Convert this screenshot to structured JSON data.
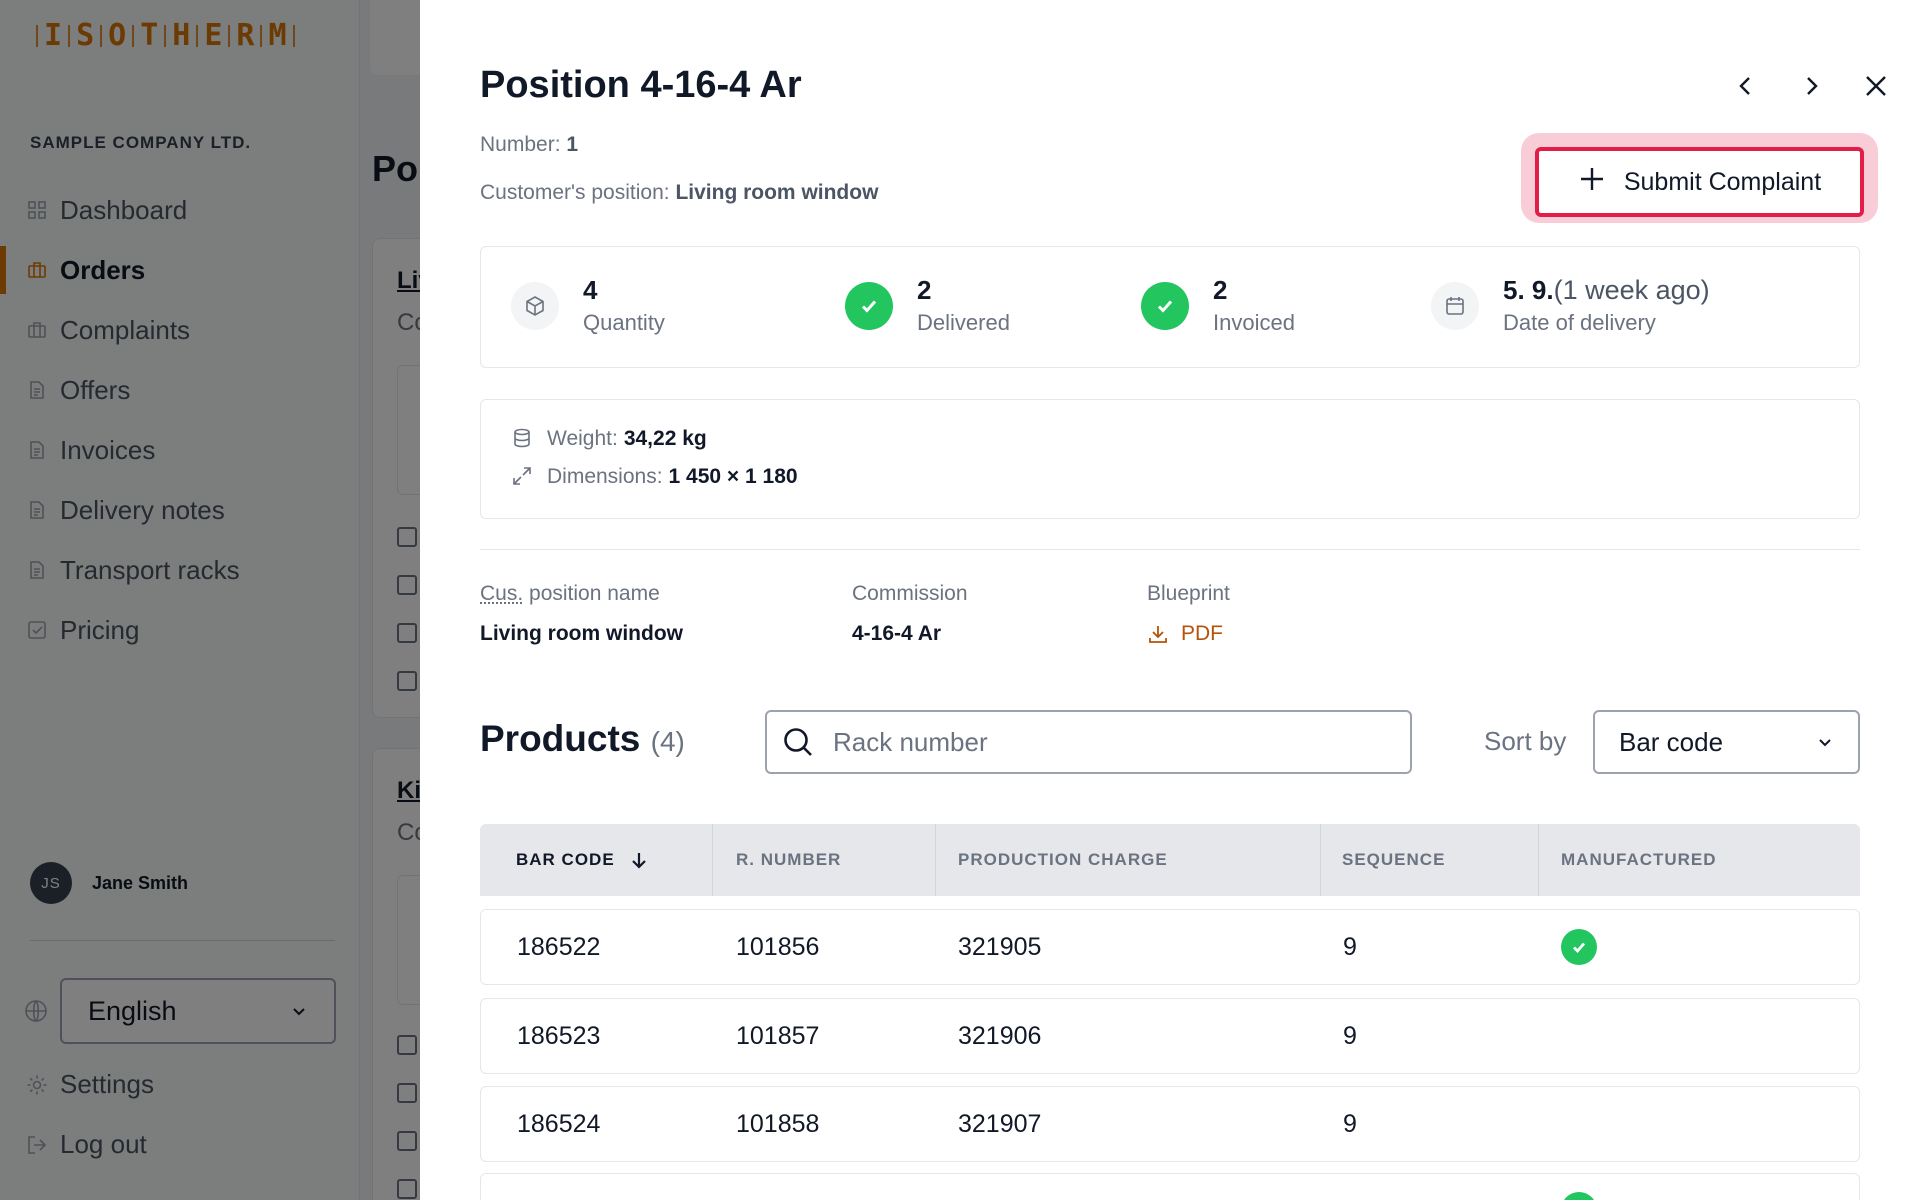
{
  "sidebar": {
    "logo_letters": [
      "I",
      "S",
      "O",
      "T",
      "H",
      "E",
      "R",
      "M"
    ],
    "company": "SAMPLE COMPANY LTD.",
    "items": [
      {
        "label": "Dashboard",
        "icon": "grid-icon",
        "active": false
      },
      {
        "label": "Orders",
        "icon": "briefcase-icon",
        "active": true
      },
      {
        "label": "Complaints",
        "icon": "briefcase-icon",
        "active": false
      },
      {
        "label": "Offers",
        "icon": "document-icon",
        "active": false
      },
      {
        "label": "Invoices",
        "icon": "document-icon",
        "active": false
      },
      {
        "label": "Delivery notes",
        "icon": "document-icon",
        "active": false
      },
      {
        "label": "Transport racks",
        "icon": "document-icon",
        "active": false
      },
      {
        "label": "Pricing",
        "icon": "checkbox-icon",
        "active": false
      }
    ],
    "user": {
      "initials": "JS",
      "name": "Jane Smith"
    },
    "language": "English",
    "settings": "Settings",
    "logout": "Log out"
  },
  "background": {
    "page_title": "Po",
    "card1_link": "Liv",
    "card1_sub": "Co",
    "card2_link": "Ki",
    "card2_sub": "Co"
  },
  "panel": {
    "title": "Position 4-16-4 Ar",
    "number_label": "Number:",
    "number_value": "1",
    "customer_label": "Customer's position:",
    "customer_value": "Living room window",
    "submit_label": "Submit Complaint",
    "stats": [
      {
        "value": "4",
        "label": "Quantity",
        "icon": "box-icon"
      },
      {
        "value": "2",
        "label": "Delivered",
        "icon": "check-circle-icon"
      },
      {
        "value": "2",
        "label": "Invoiced",
        "icon": "check-circle-icon"
      },
      {
        "value": "5. 9.",
        "relative": "(1 week ago)",
        "label": "Date of delivery",
        "icon": "calendar-icon"
      }
    ],
    "weight_label": "Weight:",
    "weight_value": "34,22 kg",
    "dimensions_label": "Dimensions:",
    "dimensions_value": "1 450 × 1 180",
    "info": {
      "cus_abbr": "Cus.",
      "cus_rest": " position name",
      "cus_value": "Living room window",
      "commission_label": "Commission",
      "commission_value": "4-16-4 Ar",
      "blueprint_label": "Blueprint",
      "blueprint_value": "PDF"
    },
    "products": {
      "title": "Products",
      "count": "(4)",
      "search_placeholder": "Rack number",
      "sort_label": "Sort by",
      "sort_value": "Bar code",
      "columns": [
        "BAR CODE",
        "R. NUMBER",
        "PRODUCTION CHARGE",
        "SEQUENCE",
        "MANUFACTURED"
      ],
      "rows": [
        {
          "bar_code": "186522",
          "r_number": "101856",
          "production_charge": "321905",
          "sequence": "9",
          "manufactured": true
        },
        {
          "bar_code": "186523",
          "r_number": "101857",
          "production_charge": "321906",
          "sequence": "9",
          "manufactured": false
        },
        {
          "bar_code": "186524",
          "r_number": "101858",
          "production_charge": "321907",
          "sequence": "9",
          "manufactured": false
        }
      ]
    }
  },
  "colors": {
    "accent": "#d97706",
    "highlight": "#e11d48",
    "success": "#22c55e"
  }
}
